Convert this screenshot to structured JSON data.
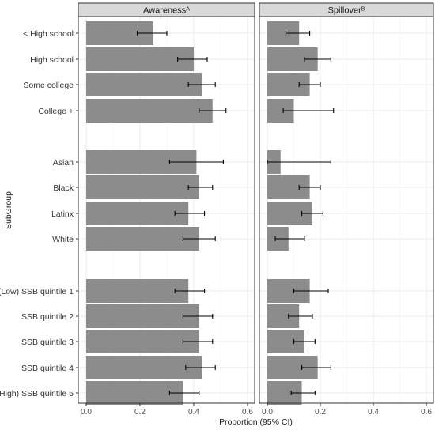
{
  "chart_data": {
    "type": "bar",
    "orientation": "horizontal",
    "xlabel": "Proportion (95% CI)",
    "ylabel": "SubGroup",
    "xlim": [
      0,
      0.6
    ],
    "xticks": [
      0.0,
      0.2,
      0.4,
      0.6
    ],
    "xtick_labels": [
      "0.0",
      "0.2",
      "0.4",
      "0.6"
    ],
    "grid": true,
    "colors": {
      "bar": "#8c8c8c",
      "panel_bg": "#ffffff",
      "grid": "#ebebeb",
      "strip_bg": "#d9d9d9",
      "border": "#333333"
    },
    "groups": [
      {
        "categories": [
          "< High school",
          "High school",
          "Some college",
          "College +"
        ]
      },
      {
        "categories": [
          "Asian",
          "Black",
          "Latinx",
          "White"
        ]
      },
      {
        "categories": [
          "(Low) SSB quintile 1",
          "SSB quintile 2",
          "SSB quintile 3",
          "SSB quintile 4",
          "(High) SSB quintile 5"
        ]
      }
    ],
    "panels": [
      {
        "title": "Awareness",
        "title_sup": "A",
        "values": [
          0.25,
          0.4,
          0.43,
          0.47,
          0.41,
          0.42,
          0.38,
          0.42,
          0.38,
          0.42,
          0.42,
          0.43,
          0.36
        ],
        "ci_low": [
          0.19,
          0.34,
          0.38,
          0.42,
          0.31,
          0.38,
          0.33,
          0.36,
          0.33,
          0.36,
          0.36,
          0.37,
          0.31
        ],
        "ci_high": [
          0.3,
          0.45,
          0.48,
          0.52,
          0.51,
          0.47,
          0.44,
          0.48,
          0.44,
          0.47,
          0.47,
          0.48,
          0.42
        ]
      },
      {
        "title": "Spillover",
        "title_sup": "B",
        "values": [
          0.12,
          0.19,
          0.16,
          0.1,
          0.05,
          0.16,
          0.17,
          0.08,
          0.16,
          0.12,
          0.14,
          0.19,
          0.13
        ],
        "ci_low": [
          0.07,
          0.14,
          0.12,
          0.06,
          0.0,
          0.12,
          0.13,
          0.03,
          0.1,
          0.08,
          0.1,
          0.13,
          0.09
        ],
        "ci_high": [
          0.16,
          0.24,
          0.2,
          0.25,
          0.24,
          0.2,
          0.21,
          0.14,
          0.23,
          0.17,
          0.18,
          0.24,
          0.18
        ]
      }
    ]
  }
}
